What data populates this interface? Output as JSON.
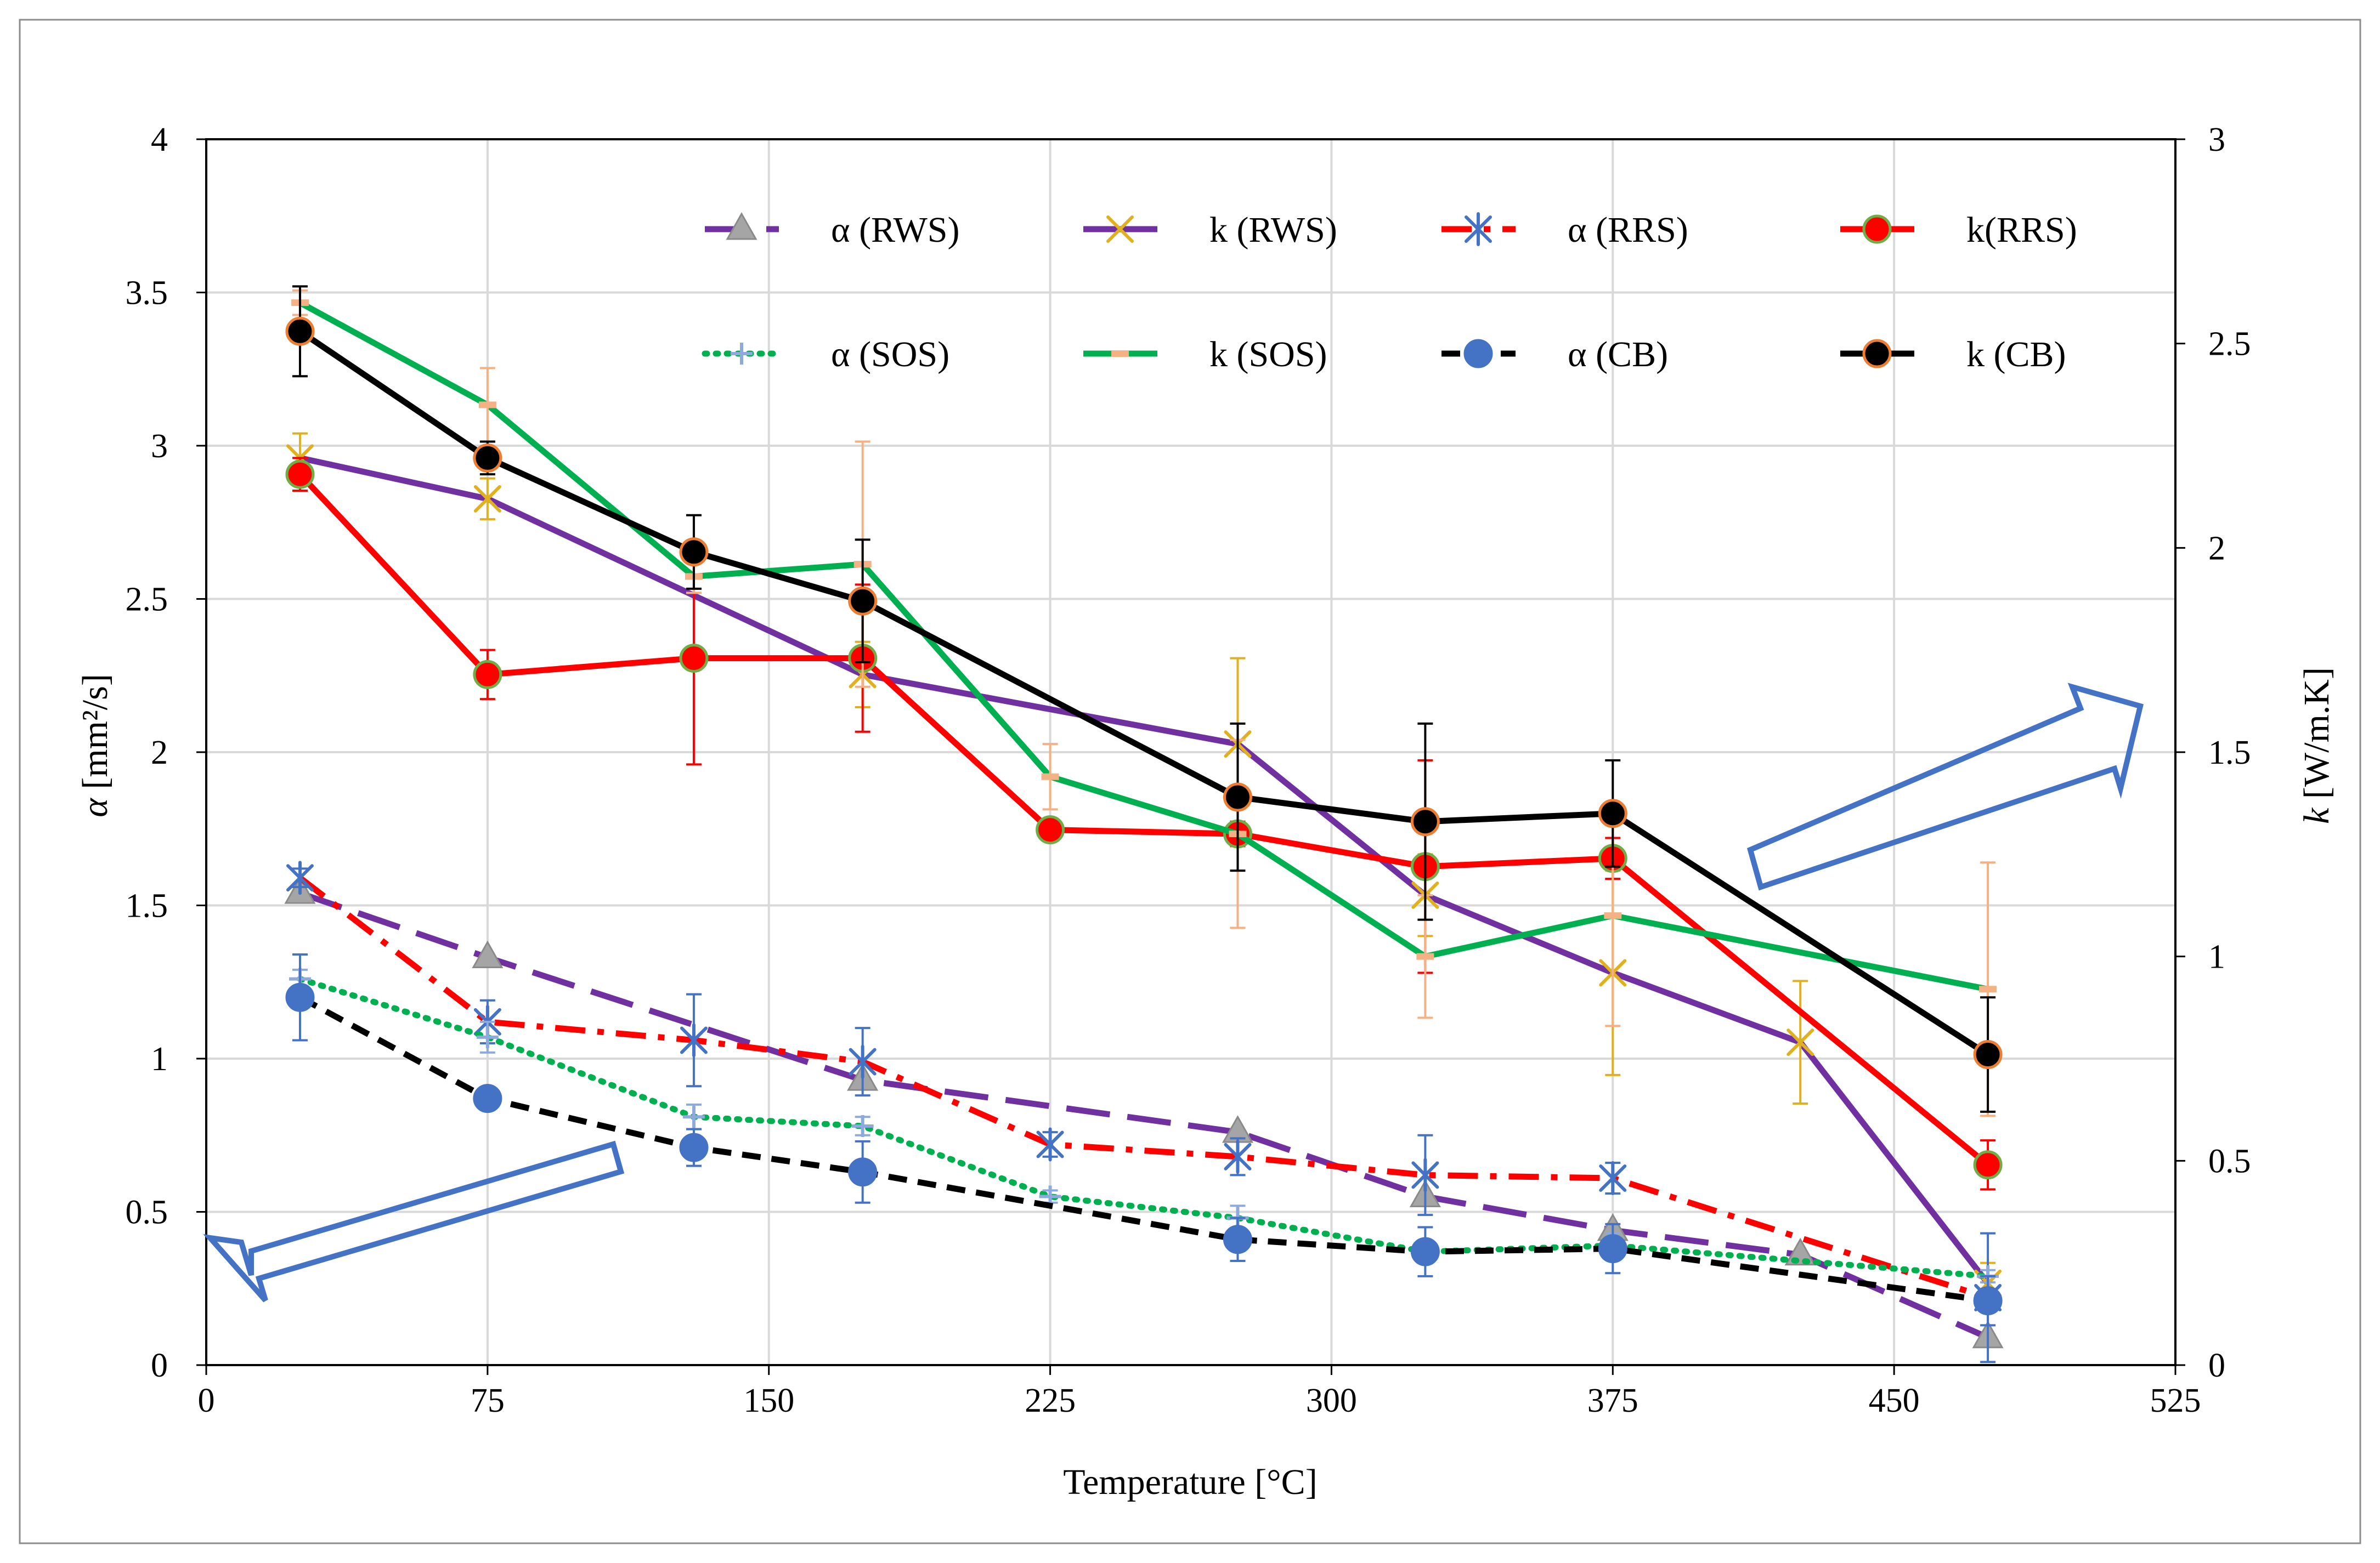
{
  "chart_data": {
    "type": "line",
    "xlabel": "Temperature [°C]",
    "ylabel_left": {
      "symbol": "α",
      "unit": " [mm²/s]"
    },
    "ylabel_right": {
      "symbol": "k",
      "unit": " [W/m.K]"
    },
    "xlim": [
      0,
      525
    ],
    "ylim_left": [
      0,
      4
    ],
    "ylim_right": [
      0,
      3
    ],
    "xticks": [
      0,
      75,
      150,
      225,
      300,
      375,
      450,
      525
    ],
    "yticks_left": [
      0,
      0.5,
      1,
      1.5,
      2,
      2.5,
      3,
      3.5,
      4
    ],
    "yticks_right": [
      0,
      0.5,
      1,
      1.5,
      2,
      2.5,
      3
    ],
    "grid": true,
    "legend_position": "top-right, inside",
    "series": [
      {
        "name": "α (RWS)",
        "axis": "left",
        "color": "#7030A0",
        "dash": "long",
        "marker": "triangle",
        "marker_color": "#A5A5A5",
        "x": [
          25,
          75,
          175,
          275,
          325,
          375,
          425,
          475
        ],
        "y": [
          1.54,
          1.33,
          0.93,
          0.76,
          0.55,
          0.44,
          0.36,
          0.09
        ],
        "err": [
          0,
          0,
          0,
          0,
          0,
          0,
          0,
          0
        ]
      },
      {
        "name": "k (RWS)",
        "axis": "right",
        "color": "#7030A0",
        "dash": "solid",
        "marker": "x",
        "marker_color": "#E0B020",
        "x": [
          25,
          75,
          175,
          275,
          325,
          375,
          425,
          475
        ],
        "y": [
          2.22,
          2.12,
          1.69,
          1.52,
          1.15,
          0.96,
          0.79,
          0.2
        ],
        "err": [
          0.06,
          0.05,
          0.08,
          0.21,
          0.1,
          0.25,
          0.15,
          0.05
        ]
      },
      {
        "name": "α (RRS)",
        "axis": "left",
        "color": "#FF0000",
        "dash": "dashdot",
        "marker": "asterisk",
        "marker_color": "#4472C4",
        "x": [
          25,
          75,
          130,
          175,
          225,
          275,
          325,
          375,
          475
        ],
        "y": [
          1.59,
          1.12,
          1.06,
          0.99,
          0.72,
          0.68,
          0.62,
          0.61,
          0.22
        ],
        "err": [
          0.03,
          0.07,
          0.15,
          0.11,
          0.04,
          0.06,
          0.13,
          0.05,
          0.21
        ]
      },
      {
        "name": "k(RRS)",
        "axis": "right",
        "color": "#FF0000",
        "dash": "solid",
        "marker": "circle",
        "marker_color": "#FF0000",
        "marker_edge": "#70AD47",
        "x": [
          25,
          75,
          130,
          175,
          225,
          275,
          325,
          375,
          475
        ],
        "y": [
          2.18,
          1.69,
          1.73,
          1.73,
          1.31,
          1.3,
          1.22,
          1.24,
          0.49
        ],
        "err": [
          0.04,
          0.06,
          0.26,
          0.18,
          0,
          0.03,
          0.26,
          0.05,
          0.06
        ]
      },
      {
        "name": "α (SOS)",
        "axis": "left",
        "color": "#00B050",
        "dash": "dotted",
        "marker": "plus",
        "marker_color": "#8EA9DB",
        "x": [
          25,
          75,
          130,
          175,
          225,
          275,
          325,
          375,
          475
        ],
        "y": [
          1.26,
          1.07,
          0.81,
          0.78,
          0.55,
          0.48,
          0.37,
          0.39,
          0.29
        ],
        "err": [
          0.03,
          0.05,
          0.04,
          0.03,
          0.02,
          0.04,
          0.03,
          0.04,
          0.02
        ]
      },
      {
        "name": "k (SOS)",
        "axis": "right",
        "color": "#00B050",
        "dash": "solid",
        "marker": "dash",
        "marker_color": "#F4B183",
        "x": [
          25,
          75,
          130,
          175,
          225,
          275,
          325,
          375,
          475
        ],
        "y": [
          2.6,
          2.35,
          1.93,
          1.96,
          1.44,
          1.3,
          1.0,
          1.1,
          0.92
        ],
        "err": [
          0.03,
          0.09,
          0.04,
          0.3,
          0.08,
          0.23,
          0.15,
          0.27,
          0.31
        ]
      },
      {
        "name": "α (CB)",
        "axis": "left",
        "color": "#000000",
        "dash": "dashed",
        "marker": "circle",
        "marker_color": "#4472C4",
        "x": [
          25,
          75,
          130,
          175,
          275,
          325,
          375,
          475
        ],
        "y": [
          1.2,
          0.87,
          0.71,
          0.63,
          0.41,
          0.37,
          0.38,
          0.21
        ],
        "err": [
          0.14,
          0.02,
          0.06,
          0.1,
          0.07,
          0.08,
          0.08,
          0.08
        ]
      },
      {
        "name": "k (CB)",
        "axis": "right",
        "color": "#000000",
        "dash": "solid",
        "marker": "circle",
        "marker_color": "#000000",
        "marker_edge": "#ED7D31",
        "x": [
          25,
          75,
          130,
          175,
          275,
          325,
          375,
          475
        ],
        "y": [
          2.53,
          2.22,
          1.99,
          1.87,
          1.39,
          1.33,
          1.35,
          0.76
        ],
        "err": [
          0.11,
          0.04,
          0.09,
          0.15,
          0.18,
          0.24,
          0.13,
          0.14
        ]
      }
    ]
  },
  "colors": {
    "arrow": "#4472C4",
    "grid": "#D9D9D9",
    "frame": "#000000"
  }
}
